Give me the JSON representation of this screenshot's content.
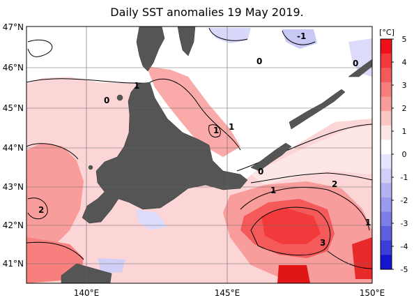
{
  "title": "Daily SST anomalies 19 May 2019.",
  "map": {
    "lat_labels": [
      "47°N",
      "46°N",
      "45°N",
      "44°N",
      "43°N",
      "42°N",
      "41°N"
    ],
    "lon_labels": [
      "140°E",
      "145°E",
      "150°E"
    ],
    "contour_labels": [
      "-1",
      "0",
      "0",
      "0",
      "1",
      "1",
      "1",
      "0",
      "1",
      "2",
      "2",
      "3",
      "1"
    ]
  },
  "colorbar": {
    "unit": "[°C]",
    "ticks": [
      "5",
      "4",
      "3",
      "2",
      "1",
      "0",
      "-1",
      "-2",
      "-3",
      "-4",
      "-5"
    ],
    "colors": [
      "#f0101a",
      "#f23a3c",
      "#f45a5a",
      "#f77c7b",
      "#f99d9c",
      "#fcc6c5",
      "#fde6e6",
      "#ffffff",
      "#e6e6ff",
      "#cfcff8",
      "#b3b3f2",
      "#9a9aee",
      "#7d7de8",
      "#5e5ee0",
      "#3d3dd8",
      "#1515d0"
    ]
  }
}
